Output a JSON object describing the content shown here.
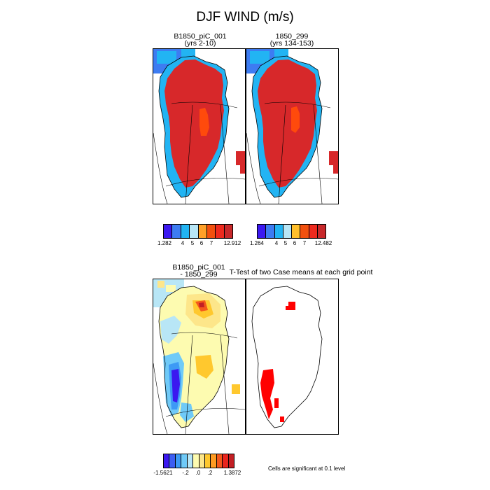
{
  "title": "DJF WIND (m/s)",
  "panels": {
    "p1": {
      "title_line1": "B1850_piC_001",
      "title_line2": "(yrs 2-10)"
    },
    "p2": {
      "title_line1": "1850_299",
      "title_line2": "(yrs 134-153)"
    },
    "p3": {
      "title_line1": "B1850_piC_001",
      "title_line2": "- 1850_299"
    },
    "p4": {
      "title": "T-Test of two Case means at each grid point"
    }
  },
  "colorbars": {
    "cb1": {
      "colors": [
        "#3b18f0",
        "#3d7cf2",
        "#22b4f3",
        "#b8e6f6",
        "#ffa028",
        "#f2500e",
        "#ee2a1e",
        "#c8282a"
      ],
      "ticks": [
        "1.282",
        "4",
        "5",
        "6",
        "7",
        "12.912"
      ]
    },
    "cb2": {
      "colors": [
        "#3b18f0",
        "#3d7cf2",
        "#22b4f3",
        "#b8e6f6",
        "#ffbf2b",
        "#f2500e",
        "#ee2a1e",
        "#c8282a"
      ],
      "ticks": [
        "1.264",
        "4",
        "5",
        "6",
        "7",
        "12.482"
      ]
    },
    "cb3": {
      "colors": [
        "#3b18f0",
        "#3d5ef2",
        "#3d9af5",
        "#6fcaf8",
        "#b8e6f6",
        "#fdfbb0",
        "#fde68a",
        "#ffc82e",
        "#ff9b22",
        "#f4581c",
        "#e9251e",
        "#c21f24"
      ],
      "ticks": [
        "-1.5621",
        "-.2",
        ".0",
        ".2",
        "1.3872"
      ]
    }
  },
  "note": "Cells are significant at 0.1 level",
  "colors": {
    "greenland_fill": "#d7282a",
    "core_fill": "#ff4a0c",
    "significant": "#ff0000"
  }
}
